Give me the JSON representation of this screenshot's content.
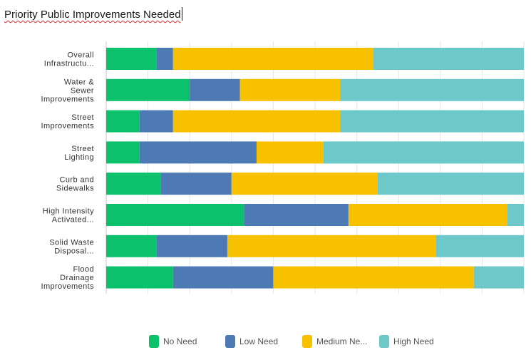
{
  "chart_data": {
    "type": "bar",
    "orientation": "horizontal",
    "stacking": "percent",
    "title": "Priority Public Improvements Needed",
    "categories": [
      [
        "Overall",
        "Infrastructu..."
      ],
      [
        "Water &",
        "Sewer",
        "Improvements"
      ],
      [
        "Street",
        "Improvements"
      ],
      [
        "Street",
        "Lighting"
      ],
      [
        "Curb and",
        "Sidewalks"
      ],
      [
        "High Intensity",
        "Activated..."
      ],
      [
        "Solid Waste",
        "Disposal..."
      ],
      [
        "Flood",
        "Drainage",
        "Improvements"
      ]
    ],
    "series": [
      {
        "name": "No Need",
        "color": "#0bc16c",
        "values": [
          12,
          20,
          8,
          8,
          13,
          33,
          12,
          16
        ]
      },
      {
        "name": "Low Need",
        "color": "#4d7ab5",
        "values": [
          4,
          12,
          8,
          28,
          17,
          25,
          17,
          24
        ]
      },
      {
        "name": "Medium Need",
        "color": "#f8c100",
        "values": [
          48,
          24,
          40,
          16,
          35,
          38,
          50,
          48
        ]
      },
      {
        "name": "High Need",
        "color": "#6cc8c9",
        "values": [
          36,
          44,
          44,
          48,
          35,
          4,
          21,
          12
        ]
      }
    ],
    "xlim": [
      0,
      100
    ],
    "gridlines": true,
    "legend": {
      "position": "bottom",
      "labels": [
        "No Need",
        "Low Need",
        "Medium Ne...",
        "High Need"
      ]
    }
  }
}
